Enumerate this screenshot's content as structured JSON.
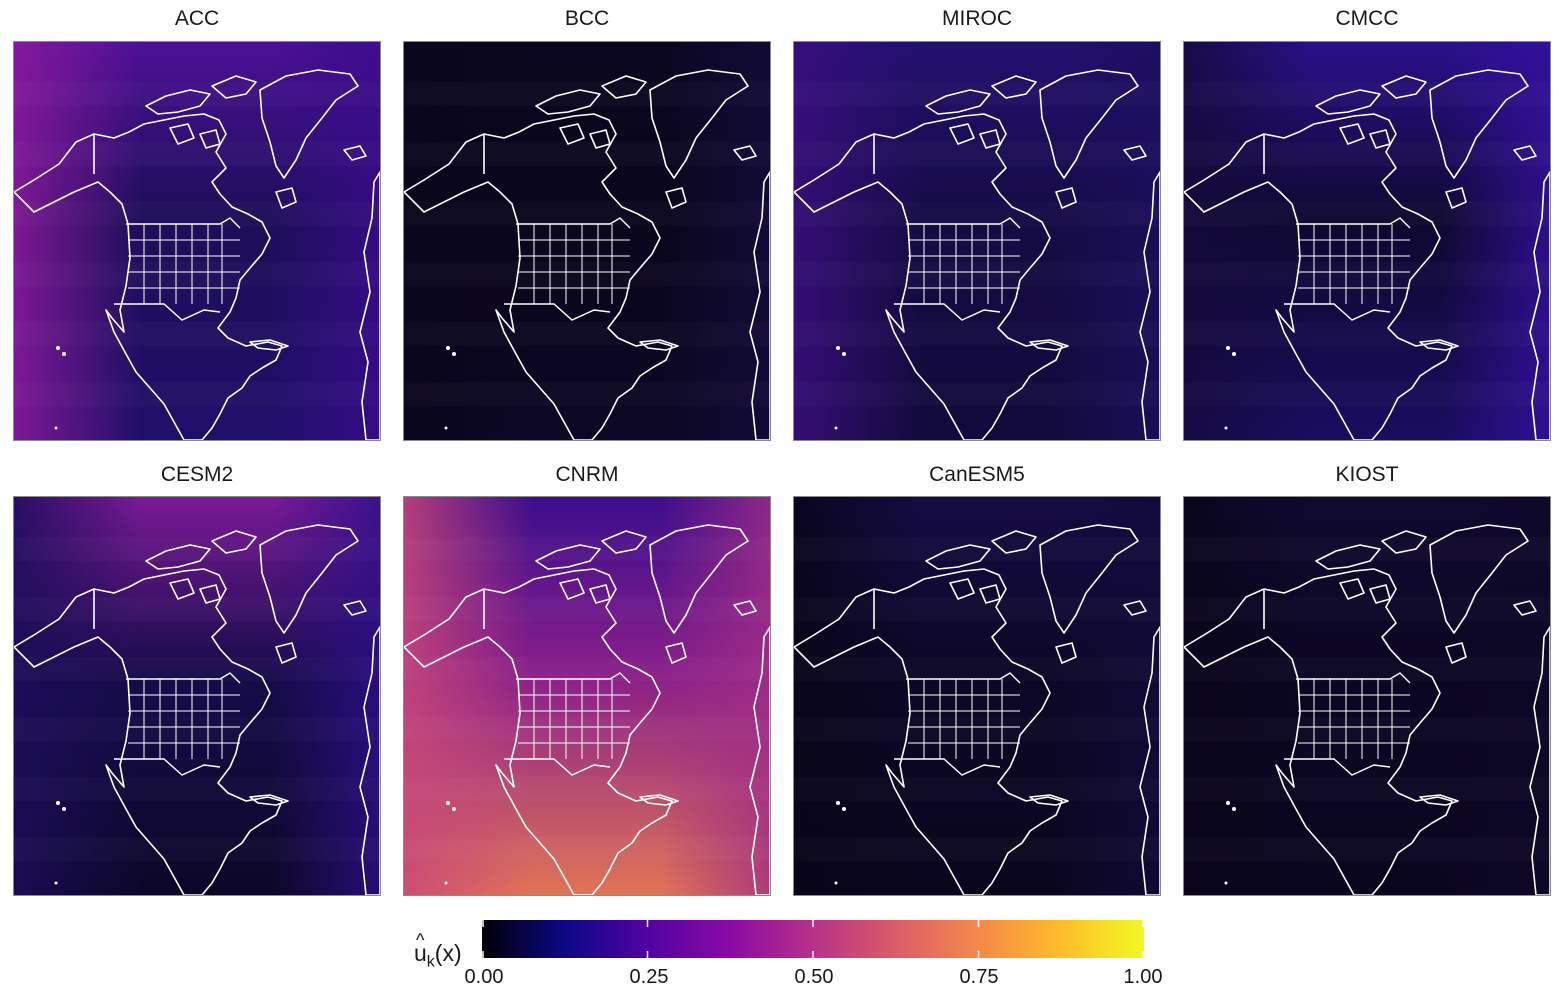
{
  "panels": [
    {
      "name": "ACC",
      "colors": {
        "base": "#1c0e58",
        "north": "#4c1096",
        "west": "#8d1a9e",
        "east": "#3a0b8c",
        "south": "#200f6a"
      }
    },
    {
      "name": "BCC",
      "colors": {
        "base": "#0a061c",
        "north": "#0b0720",
        "west": "#0a061c",
        "east": "#140b3c",
        "south": "#0c0724"
      }
    },
    {
      "name": "MIROC",
      "colors": {
        "base": "#150b44",
        "north": "#221070",
        "west": "#3a0e7e",
        "east": "#1c0e5e",
        "south": "#120a3c"
      }
    },
    {
      "name": "CMCC",
      "colors": {
        "base": "#0e0830",
        "north": "#2a108a",
        "west": "#140a3c",
        "east": "#3410a0",
        "south": "#1a0c60"
      }
    },
    {
      "name": "CESM2",
      "colors": {
        "base": "#160b4a",
        "north": "#7a1a96",
        "west": "#1c0d5a",
        "east": "#2c0f8a",
        "south": "#0c0728"
      }
    },
    {
      "name": "CNRM",
      "colors": {
        "base": "#8a1f8a",
        "north": "#3c0e8c",
        "west": "#c8477a",
        "east": "#a12e86",
        "south": "#e07456"
      }
    },
    {
      "name": "CanESM5",
      "colors": {
        "base": "#0c0726",
        "north": "#150b44",
        "west": "#080518",
        "east": "#120a3a",
        "south": "#0a061e"
      }
    },
    {
      "name": "KIOST",
      "colors": {
        "base": "#0b0622",
        "north": "#100930",
        "west": "#090519",
        "east": "#0e0828",
        "south": "#0b0620"
      }
    }
  ],
  "legend": {
    "label_main": "u",
    "label_hat": "^",
    "label_sub": "k",
    "label_arg": "(x)",
    "ticks": [
      "0.00",
      "0.25",
      "0.50",
      "0.75",
      "1.00"
    ],
    "tick_values": [
      0,
      0.25,
      0.5,
      0.75,
      1.0
    ],
    "colors": [
      "#0d0887",
      "#5302a3",
      "#8b0aa5",
      "#b83289",
      "#db5c68",
      "#f48849",
      "#febd2a",
      "#f0f921"
    ],
    "start_color": "#000004"
  }
}
